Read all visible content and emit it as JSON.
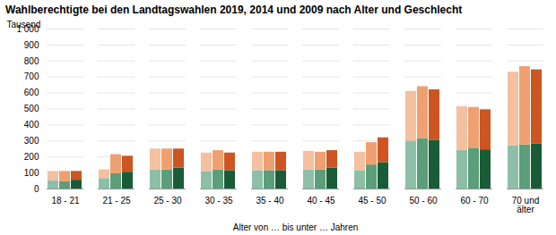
{
  "chart_data": {
    "type": "bar",
    "stacked": true,
    "title": "Wahlberechtigte bei den Landtagswahlen 2019, 2014 und 2009 nach Alter und Geschlecht",
    "ylabel": "Tausend",
    "xlabel": "Alter von … bis unter … Jahren",
    "categories": [
      "18 - 21",
      "21 - 25",
      "25 - 30",
      "30 - 35",
      "35 - 40",
      "40 - 45",
      "45 - 50",
      "50 - 60",
      "60 - 70",
      "70 und\nälter"
    ],
    "series": [
      {
        "segments": [
          {
            "color": "#8dbfa8",
            "values": [
              50,
              65,
              120,
              110,
              115,
              120,
              115,
              300,
              240,
              270
            ]
          },
          {
            "color": "#f5c0a0",
            "values": [
              60,
              55,
              130,
              115,
              115,
              115,
              115,
              310,
              275,
              460
            ]
          }
        ]
      },
      {
        "segments": [
          {
            "color": "#5a9e7a",
            "values": [
              45,
              95,
              120,
              120,
              115,
              120,
              150,
              315,
              255,
              275
            ]
          },
          {
            "color": "#f0a070",
            "values": [
              65,
              120,
              130,
              120,
              115,
              110,
              140,
              325,
              255,
              490
            ]
          }
        ]
      },
      {
        "segments": [
          {
            "color": "#1a5c38",
            "values": [
              55,
              105,
              130,
              115,
              115,
              130,
              165,
              305,
              245,
              280
            ]
          },
          {
            "color": "#cc5522",
            "values": [
              55,
              100,
              120,
              110,
              115,
              110,
              155,
              315,
              250,
              465
            ]
          }
        ]
      }
    ],
    "ylim": [
      0,
      1000
    ],
    "yticks": [
      0,
      100,
      200,
      300,
      400,
      500,
      600,
      700,
      800,
      900,
      {
        "value": 1000,
        "label": "1 000"
      }
    ],
    "grid": true
  }
}
